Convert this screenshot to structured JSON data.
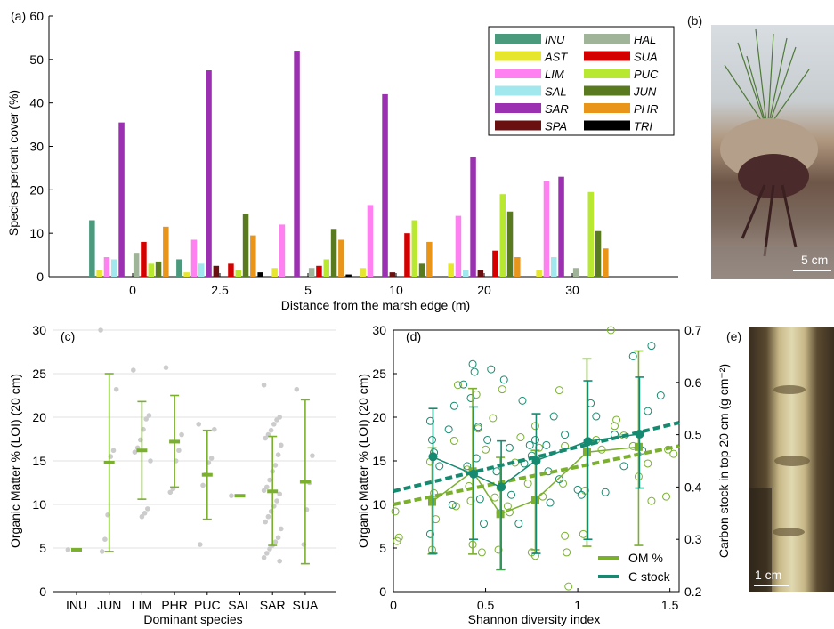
{
  "panels": {
    "a_label": "(a)",
    "b_label": "(b)",
    "c_label": "(c)",
    "d_label": "(d)",
    "e_label": "(e)"
  },
  "photos": {
    "b_scale": "5 cm",
    "e_scale": "1 cm"
  },
  "colors": {
    "INU": "#4a9a7e",
    "AST": "#e6e62e",
    "LIM": "#ff80f0",
    "SAL": "#a0e8ee",
    "SAR": "#9b30b0",
    "SPA": "#6a1010",
    "HAL": "#a0b49a",
    "SUA": "#d40000",
    "PUC": "#b8e830",
    "JUN": "#5a7a20",
    "PHR": "#e8951a",
    "TRI": "#000000",
    "om": "#7ab02e",
    "cstock": "#168a70",
    "dots": "#cccccc"
  },
  "chart_data": [
    {
      "id": "a",
      "type": "bar",
      "xlabel": "Distance from the marsh edge (m)",
      "ylabel": "Species percent cover (%)",
      "ylim": [
        0,
        60
      ],
      "yticks": [
        0,
        10,
        20,
        30,
        40,
        50,
        60
      ],
      "categories": [
        "0",
        "2.5",
        "5",
        "10",
        "20",
        "30"
      ],
      "legend_position": "top-right",
      "legend_left": [
        "INU",
        "AST",
        "LIM",
        "SAL",
        "SAR",
        "SPA"
      ],
      "legend_right": [
        "HAL",
        "SUA",
        "PUC",
        "JUN",
        "PHR",
        "TRI"
      ],
      "series": [
        {
          "name": "INU",
          "values": [
            13,
            4,
            0,
            0,
            0,
            0
          ]
        },
        {
          "name": "AST",
          "values": [
            1.5,
            1,
            2,
            2,
            3,
            1.5
          ]
        },
        {
          "name": "LIM",
          "values": [
            4.5,
            8.5,
            12,
            16.5,
            14,
            22
          ]
        },
        {
          "name": "SAL",
          "values": [
            4,
            3,
            0,
            0,
            1.5,
            4.5
          ]
        },
        {
          "name": "SAR",
          "values": [
            35.5,
            47.5,
            52,
            42,
            27.5,
            23
          ]
        },
        {
          "name": "SPA",
          "values": [
            0,
            2.5,
            0,
            1,
            1.5,
            0
          ]
        },
        {
          "name": "HAL",
          "values": [
            5.5,
            0,
            2,
            0,
            0,
            2
          ]
        },
        {
          "name": "SUA",
          "values": [
            8,
            3,
            2.5,
            10,
            6,
            0
          ]
        },
        {
          "name": "PUC",
          "values": [
            3,
            1.5,
            4,
            13,
            19,
            19.5
          ]
        },
        {
          "name": "JUN",
          "values": [
            3.5,
            14.5,
            11,
            3,
            15,
            10.5
          ]
        },
        {
          "name": "PHR",
          "values": [
            11.5,
            9.5,
            8.5,
            8,
            4.5,
            6.5
          ]
        },
        {
          "name": "TRI",
          "values": [
            0,
            1,
            0.5,
            0,
            0,
            0
          ]
        }
      ]
    },
    {
      "id": "c",
      "type": "scatter",
      "xlabel": "Dominant species",
      "ylabel": "Organic Matter % (LOI) (20 cm)",
      "ylim": [
        0,
        30
      ],
      "yticks": [
        0,
        5,
        10,
        15,
        20,
        25,
        30
      ],
      "grid": true,
      "categories": [
        "INU",
        "JUN",
        "LIM",
        "PHR",
        "PUC",
        "SAL",
        "SAR",
        "SUA"
      ],
      "means": [
        4.8,
        14.8,
        16.2,
        17.2,
        13.4,
        11.0,
        11.5,
        12.6
      ],
      "err_low": [
        4.8,
        4.6,
        10.6,
        12.0,
        8.3,
        11.0,
        5.3,
        3.2
      ],
      "err_high": [
        4.8,
        25.0,
        21.8,
        22.5,
        18.5,
        11.0,
        17.8,
        22.0
      ],
      "points": [
        [
          4.8
        ],
        [
          30.0,
          23.2,
          16.2,
          15.5,
          8.8,
          6.0,
          4.6
        ],
        [
          25.4,
          20.2,
          19.8,
          18.6,
          17.4,
          16.5,
          16.0,
          15.0,
          9.5,
          9.0,
          8.6
        ],
        [
          25.7,
          18.0,
          16.2,
          15.0,
          11.8,
          11.4
        ],
        [
          19.2,
          18.6,
          15.3,
          14.8,
          13.5,
          12.2,
          5.4
        ],
        [
          11.0
        ],
        [
          23.7,
          20.0,
          19.7,
          19.2,
          18.5,
          18.0,
          17.6,
          16.8,
          15.7,
          14.5,
          13.8,
          12.8,
          12.0,
          11.6,
          11.2,
          10.4,
          9.8,
          9.2,
          8.6,
          8.0,
          7.2,
          6.2,
          5.7,
          5.3,
          4.9,
          4.4,
          3.9,
          3.5
        ],
        [
          23.2,
          15.6,
          12.5,
          9.4,
          5.4
        ]
      ]
    },
    {
      "id": "d",
      "type": "scatter",
      "xlabel": "Shannon diversity index",
      "ylabel": "Organic Matter % (LOI) (20 cm)",
      "y2label": "Carbon stock in top 20 cm (g cm⁻²)",
      "xlim": [
        0,
        1.55
      ],
      "xticks": [
        0,
        0.5,
        1,
        1.5
      ],
      "ylim": [
        0,
        30
      ],
      "yticks": [
        0,
        5,
        10,
        15,
        20,
        25,
        30
      ],
      "y2lim": [
        0.2,
        0.7
      ],
      "y2ticks": [
        0.2,
        0.3,
        0.4,
        0.5,
        0.6,
        0.7
      ],
      "legend_position": "bottom-right",
      "series": [
        {
          "name": "OM %",
          "axis": "left",
          "x": [
            0.21,
            0.43,
            0.58,
            0.77,
            1.05,
            1.33
          ],
          "mean": [
            10.3,
            13.8,
            8.9,
            10.5,
            16.0,
            16.6
          ],
          "err_low": [
            4.3,
            4.3,
            2.5,
            4.8,
            5.2,
            5.3
          ],
          "err_high": [
            16.5,
            23.3,
            15.4,
            16.2,
            26.7,
            27.6
          ],
          "trend": {
            "x": [
              0,
              1.55
            ],
            "y": [
              10.0,
              16.7
            ]
          },
          "points": [
            [
              0.01,
              9.2
            ],
            [
              0.02,
              5.8
            ],
            [
              0.03,
              6.2
            ],
            [
              0.2,
              14.9
            ],
            [
              0.22,
              11.3
            ],
            [
              0.23,
              8.3
            ],
            [
              0.21,
              4.8
            ],
            [
              0.33,
              17.3
            ],
            [
              0.34,
              9.8
            ],
            [
              0.35,
              23.7
            ],
            [
              0.4,
              14.0
            ],
            [
              0.41,
              12.1
            ],
            [
              0.42,
              10.4
            ],
            [
              0.43,
              5.4
            ],
            [
              0.45,
              22.6
            ],
            [
              0.46,
              18.7
            ],
            [
              0.48,
              4.5
            ],
            [
              0.5,
              16.3
            ],
            [
              0.54,
              19.9
            ],
            [
              0.55,
              10.8
            ],
            [
              0.57,
              4.8
            ],
            [
              0.58,
              11.9
            ],
            [
              0.59,
              23.2
            ],
            [
              0.62,
              9.8
            ],
            [
              0.63,
              9.1
            ],
            [
              0.66,
              14.8
            ],
            [
              0.69,
              17.7
            ],
            [
              0.73,
              12.4
            ],
            [
              0.75,
              4.5
            ],
            [
              0.77,
              4.1
            ],
            [
              0.77,
              19.0
            ],
            [
              0.79,
              16.5
            ],
            [
              0.81,
              10.9
            ],
            [
              0.9,
              23.1
            ],
            [
              0.92,
              12.4
            ],
            [
              0.93,
              6.4
            ],
            [
              0.93,
              16.7
            ],
            [
              0.94,
              4.5
            ],
            [
              0.95,
              0.6
            ],
            [
              1.03,
              6.6
            ],
            [
              1.04,
              11.6
            ],
            [
              1.1,
              17.4
            ],
            [
              1.13,
              16.3
            ],
            [
              1.18,
              30.0
            ],
            [
              1.2,
              19.0
            ],
            [
              1.21,
              19.7
            ],
            [
              1.25,
              17.9
            ],
            [
              1.3,
              16.7
            ],
            [
              1.33,
              13.2
            ],
            [
              1.38,
              14.7
            ],
            [
              1.4,
              10.4
            ],
            [
              1.48,
              10.9
            ],
            [
              1.49,
              16.3
            ],
            [
              1.52,
              15.8
            ]
          ]
        },
        {
          "name": "C stock",
          "axis": "right",
          "x": [
            0.21,
            0.43,
            0.58,
            0.77,
            1.05,
            1.33
          ],
          "mean": [
            0.458,
            0.425,
            0.4,
            0.45,
            0.487,
            0.501
          ],
          "err_low": [
            0.273,
            0.3,
            0.243,
            0.273,
            0.3,
            0.398
          ],
          "err_high": [
            0.55,
            0.553,
            0.488,
            0.54,
            0.603,
            0.61
          ],
          "trend": {
            "x": [
              0,
              1.55
            ],
            "y": [
              0.392,
              0.523
            ]
          },
          "points": [
            [
              0.2,
              0.526
            ],
            [
              0.21,
              0.49
            ],
            [
              0.22,
              0.466
            ],
            [
              0.25,
              0.44
            ],
            [
              0.2,
              0.31
            ],
            [
              0.3,
              0.51
            ],
            [
              0.32,
              0.366
            ],
            [
              0.33,
              0.555
            ],
            [
              0.38,
              0.596
            ],
            [
              0.4,
              0.44
            ],
            [
              0.42,
              0.57
            ],
            [
              0.43,
              0.635
            ],
            [
              0.44,
              0.62
            ],
            [
              0.45,
              0.455
            ],
            [
              0.46,
              0.515
            ],
            [
              0.47,
              0.377
            ],
            [
              0.49,
              0.33
            ],
            [
              0.51,
              0.49
            ],
            [
              0.53,
              0.625
            ],
            [
              0.56,
              0.43
            ],
            [
              0.58,
              0.35
            ],
            [
              0.6,
              0.605
            ],
            [
              0.63,
              0.475
            ],
            [
              0.64,
              0.385
            ],
            [
              0.68,
              0.33
            ],
            [
              0.7,
              0.565
            ],
            [
              0.71,
              0.445
            ],
            [
              0.74,
              0.48
            ],
            [
              0.75,
              0.46
            ],
            [
              0.77,
              0.49
            ],
            [
              0.83,
              0.48
            ],
            [
              0.84,
              0.43
            ],
            [
              0.85,
              0.37
            ],
            [
              0.87,
              0.535
            ],
            [
              0.9,
              0.415
            ],
            [
              0.93,
              0.5
            ],
            [
              1.0,
              0.395
            ],
            [
              1.02,
              0.385
            ],
            [
              1.07,
              0.56
            ],
            [
              1.1,
              0.535
            ],
            [
              1.15,
              0.39
            ],
            [
              1.2,
              0.5
            ],
            [
              1.25,
              0.44
            ],
            [
              1.3,
              0.65
            ],
            [
              1.35,
              0.47
            ],
            [
              1.38,
              0.545
            ],
            [
              1.4,
              0.67
            ],
            [
              1.45,
              0.575
            ]
          ]
        }
      ]
    }
  ]
}
